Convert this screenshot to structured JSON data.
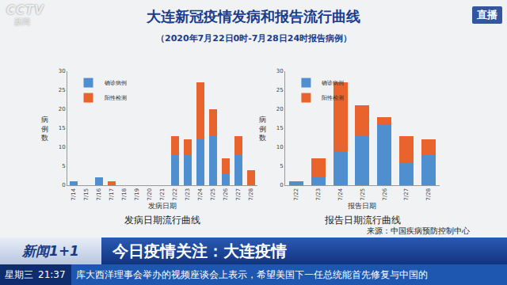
{
  "title": "大连新冠疫情发病和报告流行曲线",
  "subtitle": "（2020年7月22日0时-7月28日24时报告病例）",
  "source": "来源：中国疾病预防控制中心",
  "overlay": {
    "logo": "CCTV",
    "logo_sub": "新闻",
    "live": "直播",
    "program": "新闻1+1",
    "headline": "今日疫情关注：大连疫情",
    "weekday": "星期三",
    "time": "21:37",
    "ticker": "库大西洋理事会举办的视频座谈会上表示，希望美国下一任总统能首先修复与中国的"
  },
  "chart_data": [
    {
      "type": "bar",
      "stacked": true,
      "title": "发病日期流行曲线",
      "x_label": "发病日期",
      "y_label": "病例数",
      "categories": [
        "7/14",
        "7/15",
        "7/16",
        "7/17",
        "7/18",
        "7/19",
        "7/20",
        "7/21",
        "7/22",
        "7/23",
        "7/24",
        "7/25",
        "7/26",
        "7/27",
        "7/28"
      ],
      "series": [
        {
          "name": "确诊病例",
          "color": "#4f8fd0",
          "values": [
            1,
            0,
            2,
            0,
            0,
            0,
            0,
            0,
            8,
            8,
            12,
            13,
            3,
            8,
            0
          ]
        },
        {
          "name": "阳性检测",
          "color": "#e8642c",
          "values": [
            0,
            0,
            0,
            1,
            0,
            0,
            0,
            0,
            5,
            4,
            15,
            7,
            4,
            5,
            4
          ]
        }
      ],
      "ylim": [
        0,
        30
      ],
      "yticks": [
        0,
        5,
        10,
        15,
        20,
        25,
        30
      ],
      "grid": false,
      "legend": "upper left"
    },
    {
      "type": "bar",
      "stacked": true,
      "title": "报告日期流行曲线",
      "x_label": "报告日期",
      "y_label": "病例数",
      "categories": [
        "7/22",
        "7/23",
        "7/24",
        "7/25",
        "7/26",
        "7/27",
        "7/28"
      ],
      "series": [
        {
          "name": "确诊病例",
          "color": "#4f8fd0",
          "values": [
            1,
            2,
            9,
            13,
            16,
            6,
            8
          ]
        },
        {
          "name": "阳性检测",
          "color": "#e8642c",
          "values": [
            0,
            5,
            18,
            8,
            2,
            7,
            4
          ]
        }
      ],
      "ylim": [
        0,
        30
      ],
      "yticks": [
        0,
        5,
        10,
        15,
        20,
        25,
        30
      ],
      "grid": false,
      "legend": "upper left"
    }
  ]
}
